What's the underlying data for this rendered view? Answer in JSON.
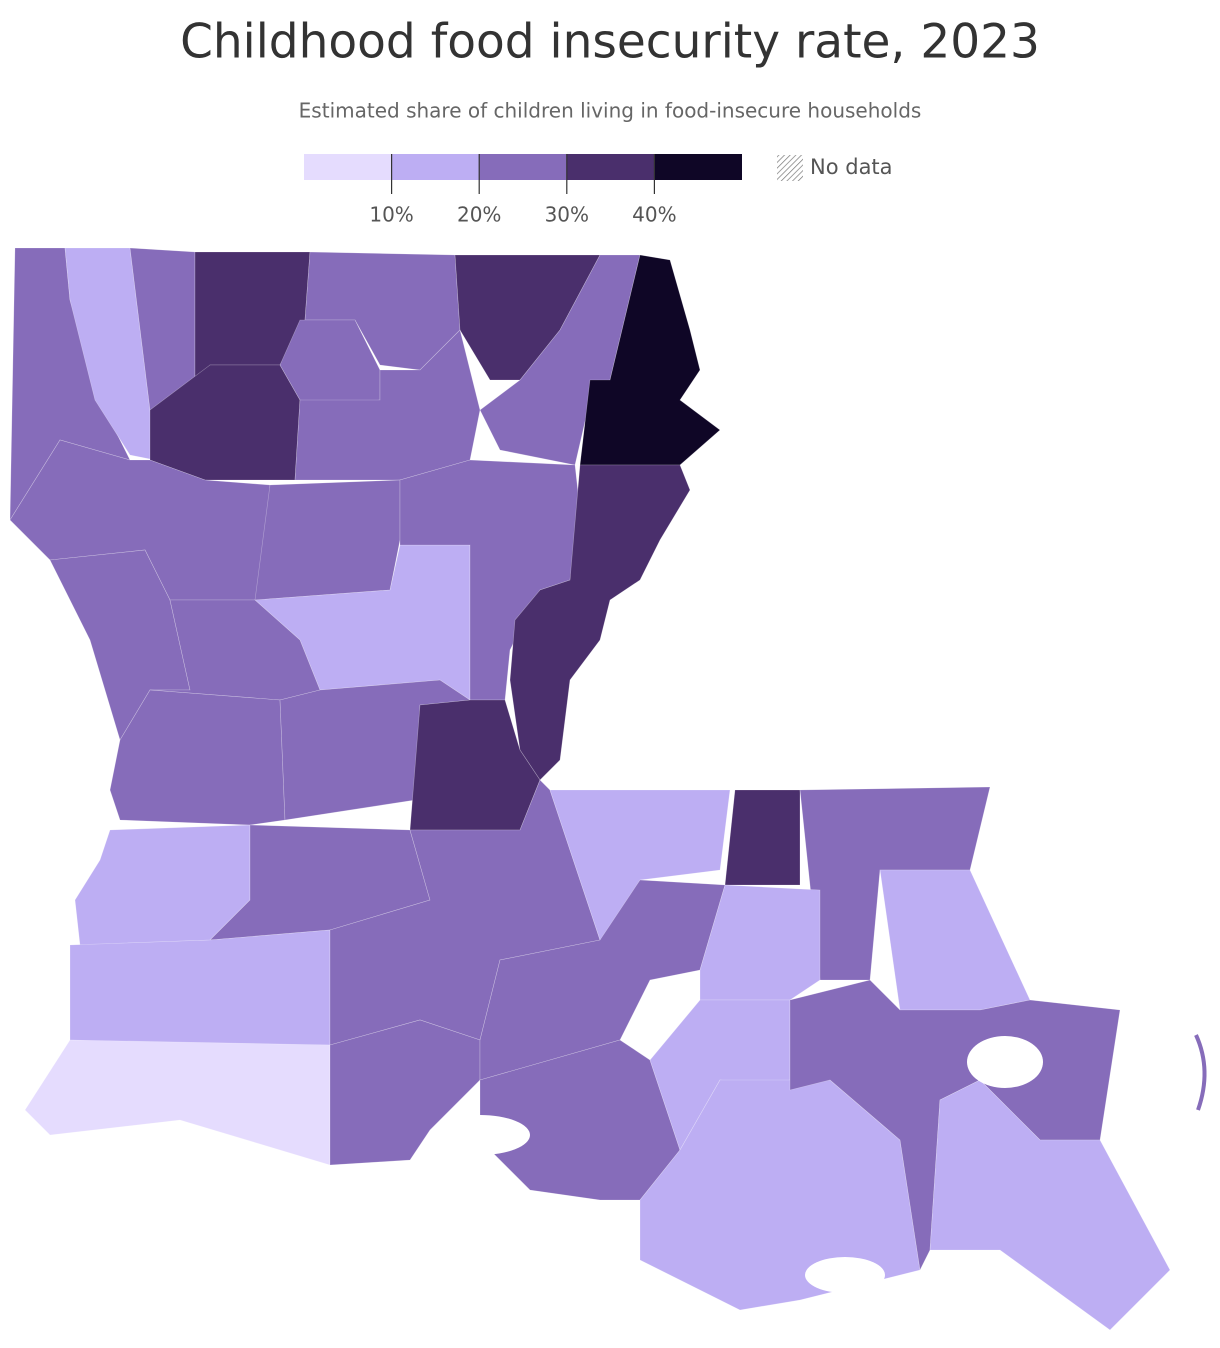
{
  "title": "Childhood food insecurity rate, 2023",
  "subtitle": "Estimated share of children living in food-insecure households",
  "legend": {
    "range": [
      0,
      50
    ],
    "ticks": [
      {
        "value": 10,
        "label": "10%"
      },
      {
        "value": 20,
        "label": "20%"
      },
      {
        "value": 30,
        "label": "30%"
      },
      {
        "value": 40,
        "label": "40%"
      }
    ],
    "colors": [
      "#e5dcfe",
      "#bdaef3",
      "#866cba",
      "#4a2f6c",
      "#0f0626"
    ],
    "no_data": "No data"
  }
}
